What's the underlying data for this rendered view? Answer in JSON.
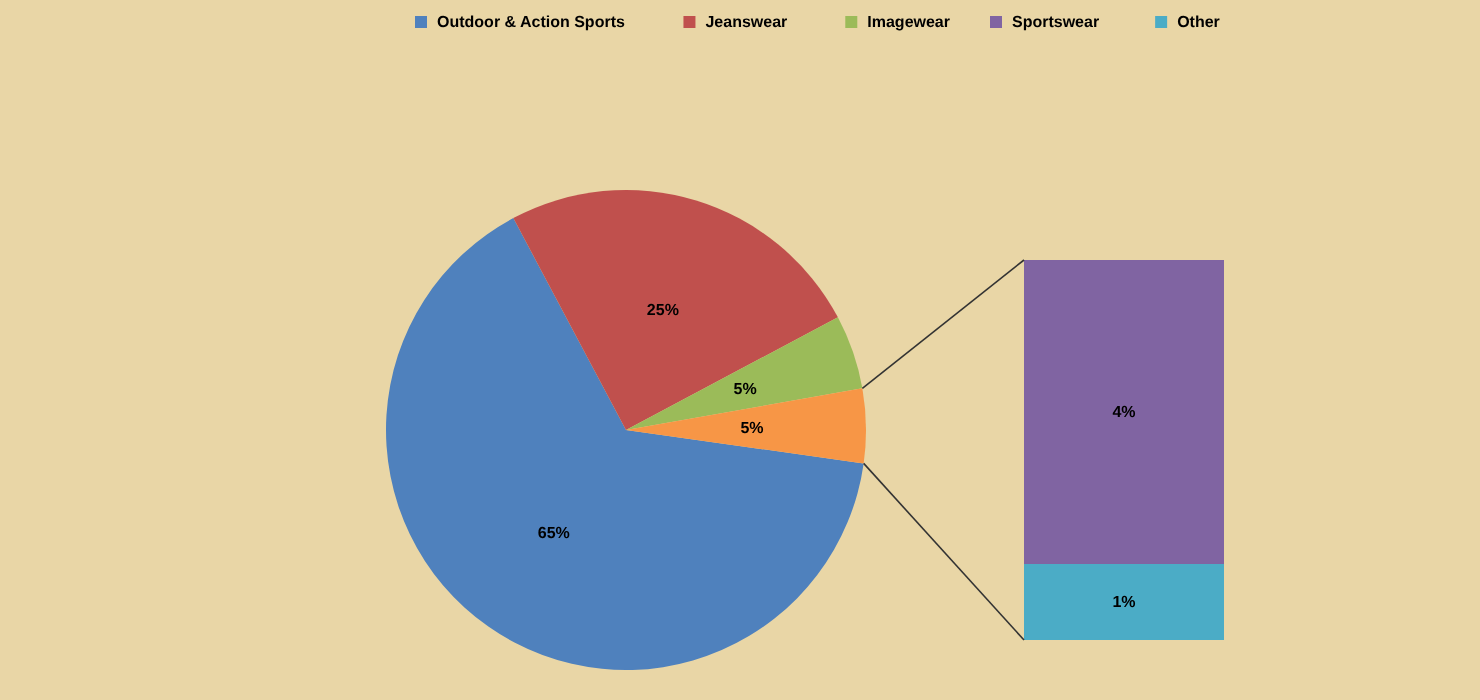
{
  "chart_data": [
    {
      "type": "pie",
      "categories": [
        "Outdoor & Action Sports",
        "Jeanswear",
        "Imagewear",
        null
      ],
      "values": [
        65,
        25,
        5,
        5
      ],
      "value_labels": [
        "65%",
        "25%",
        "5%",
        "5%"
      ],
      "colors": [
        "#4f81bd",
        "#c0504d",
        "#9bbb59",
        "#f79646"
      ],
      "legend": "top"
    },
    {
      "type": "bar",
      "stacked": true,
      "categories": [
        null
      ],
      "series": [
        {
          "name": "Other",
          "color": "#4bacc6",
          "values": [
            1
          ],
          "value_labels": [
            "1%"
          ]
        },
        {
          "name": "Sportswear",
          "color": "#8064a2",
          "values": [
            4
          ],
          "value_labels": [
            "4%"
          ]
        }
      ],
      "legend": "top"
    }
  ]
}
